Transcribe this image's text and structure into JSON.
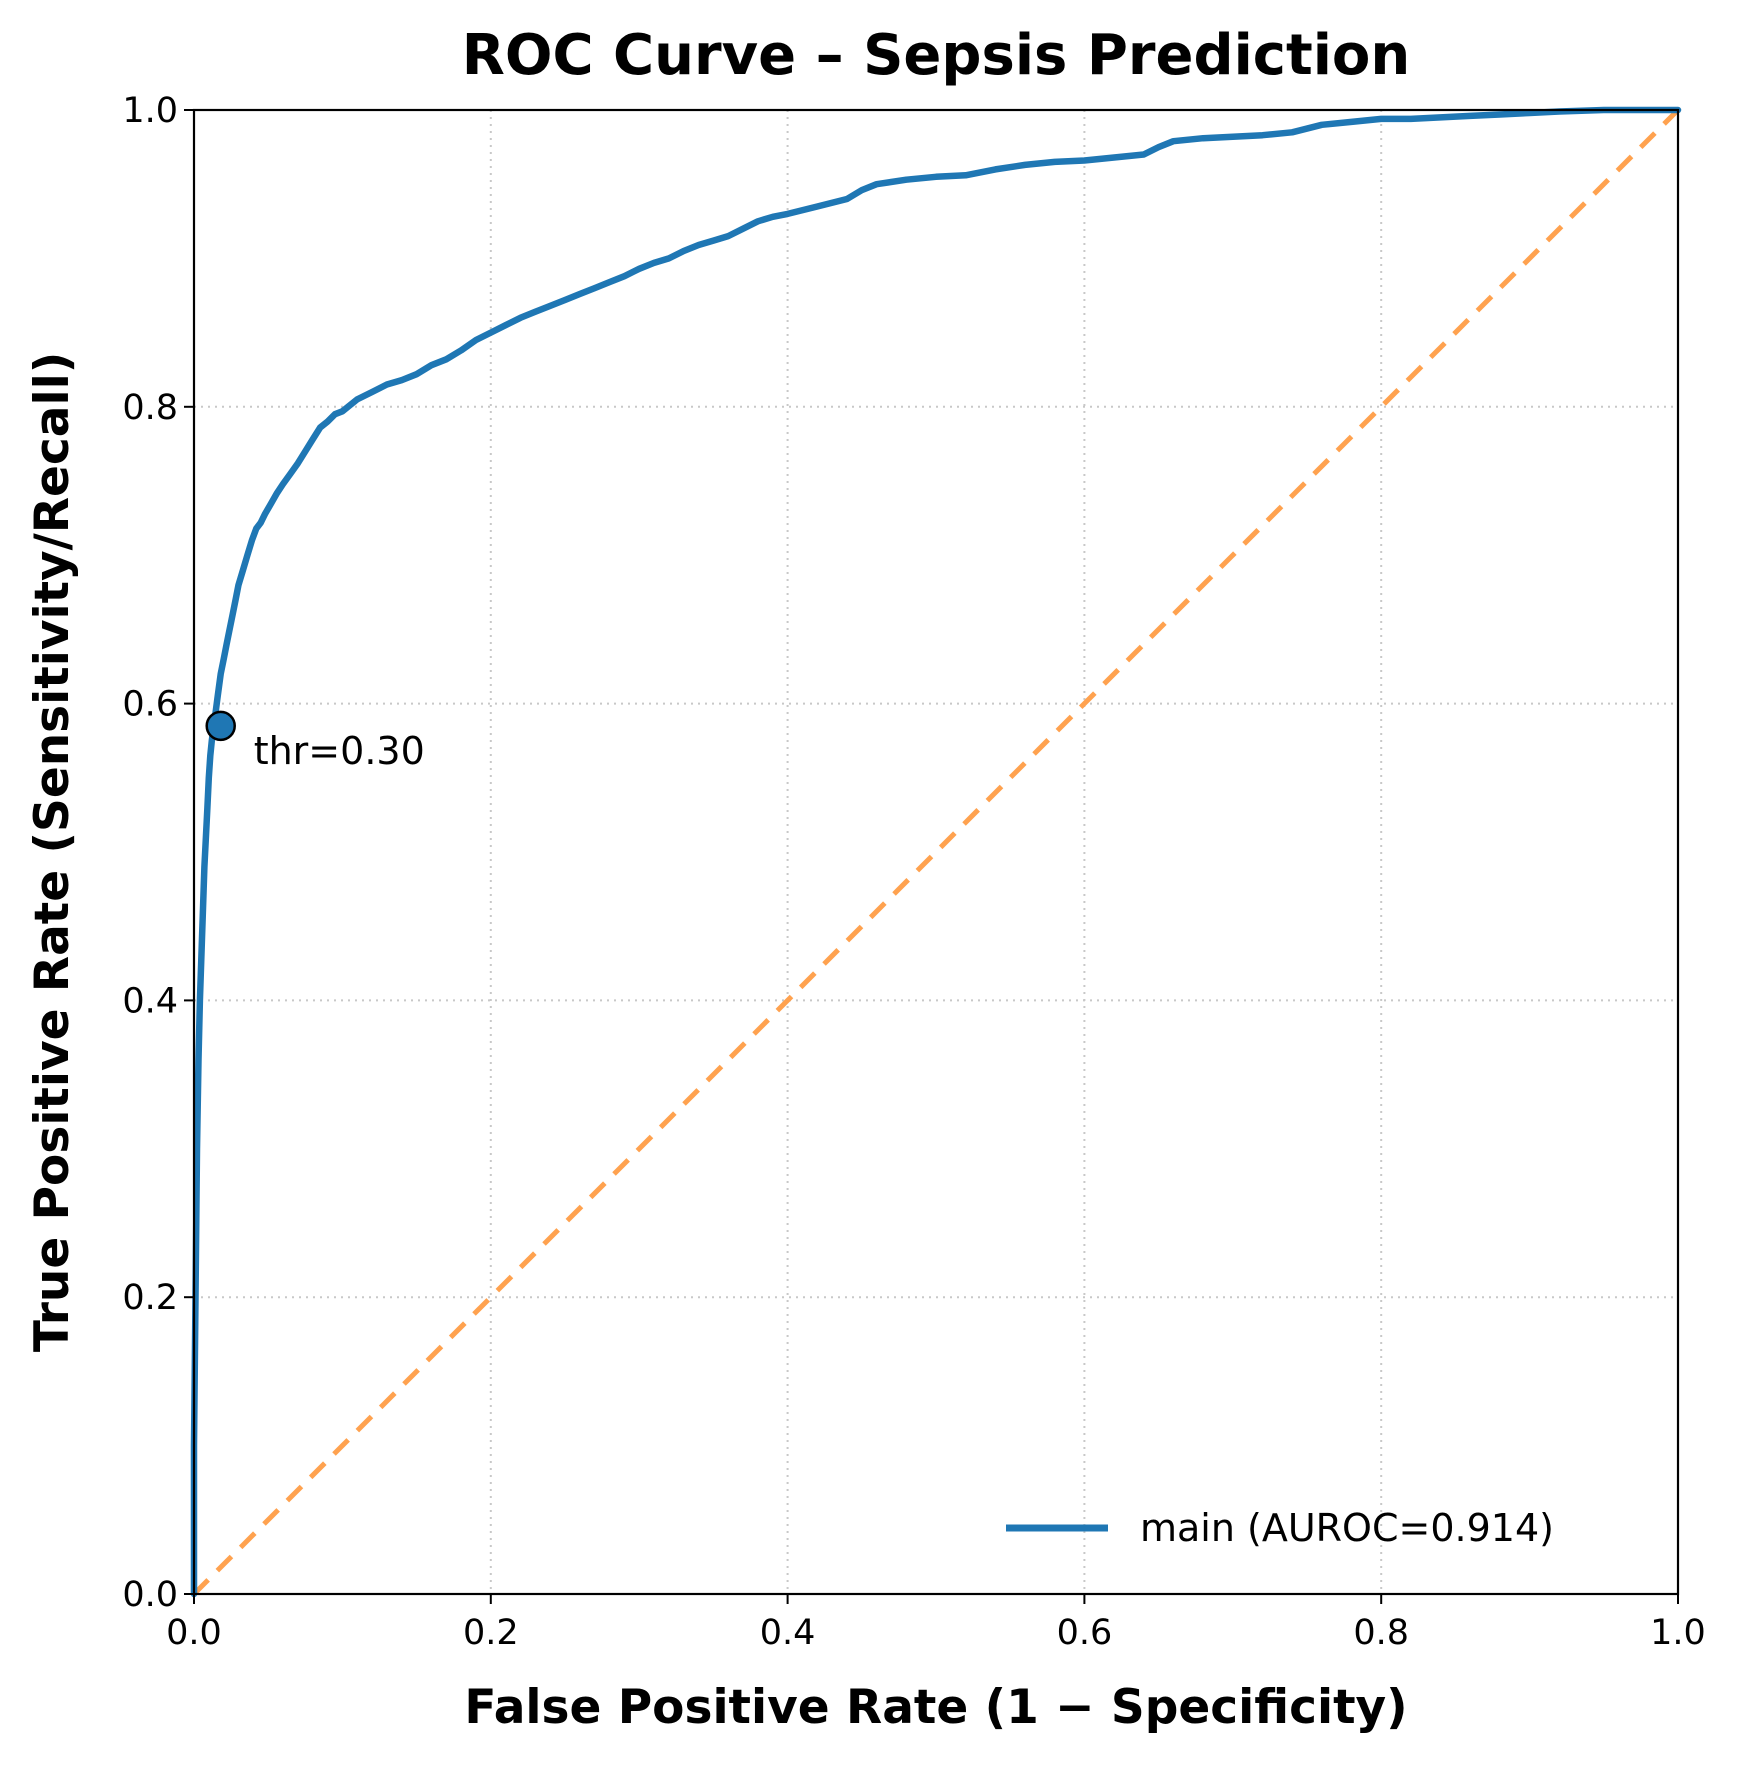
{
  "chart_data": {
    "type": "line",
    "title": "ROC Curve – Sepsis Prediction",
    "xlabel": "False Positive Rate (1 − Specificity)",
    "ylabel": "True Positive Rate (Sensitivity/Recall)",
    "xlim": [
      0.0,
      1.0
    ],
    "ylim": [
      0.0,
      1.0
    ],
    "xticks": [
      "0.0",
      "0.2",
      "0.4",
      "0.6",
      "0.8",
      "1.0"
    ],
    "yticks": [
      "0.0",
      "0.2",
      "0.4",
      "0.6",
      "0.8",
      "1.0"
    ],
    "grid": true,
    "legend_position": "lower-right",
    "series": [
      {
        "name": "main (AUROC=0.914)",
        "color": "#1f77b4",
        "x": [
          0.0,
          0.0,
          0.002,
          0.003,
          0.004,
          0.005,
          0.006,
          0.007,
          0.008,
          0.009,
          0.01,
          0.011,
          0.012,
          0.014,
          0.016,
          0.018,
          0.02,
          0.022,
          0.024,
          0.026,
          0.028,
          0.03,
          0.033,
          0.036,
          0.039,
          0.042,
          0.045,
          0.048,
          0.052,
          0.056,
          0.06,
          0.065,
          0.07,
          0.075,
          0.08,
          0.085,
          0.09,
          0.095,
          0.1,
          0.11,
          0.12,
          0.13,
          0.14,
          0.15,
          0.16,
          0.17,
          0.18,
          0.19,
          0.2,
          0.21,
          0.22,
          0.23,
          0.24,
          0.25,
          0.26,
          0.27,
          0.28,
          0.29,
          0.3,
          0.31,
          0.32,
          0.33,
          0.34,
          0.35,
          0.36,
          0.37,
          0.38,
          0.39,
          0.4,
          0.42,
          0.44,
          0.45,
          0.46,
          0.48,
          0.5,
          0.52,
          0.54,
          0.56,
          0.58,
          0.6,
          0.62,
          0.64,
          0.65,
          0.66,
          0.68,
          0.7,
          0.72,
          0.74,
          0.76,
          0.78,
          0.8,
          0.82,
          0.84,
          0.86,
          0.88,
          0.9,
          0.92,
          0.95,
          1.0
        ],
        "y": [
          0.0,
          0.1,
          0.3,
          0.36,
          0.4,
          0.43,
          0.46,
          0.49,
          0.51,
          0.53,
          0.55,
          0.565,
          0.575,
          0.59,
          0.605,
          0.62,
          0.63,
          0.64,
          0.65,
          0.66,
          0.67,
          0.68,
          0.69,
          0.7,
          0.71,
          0.718,
          0.722,
          0.728,
          0.735,
          0.742,
          0.748,
          0.755,
          0.762,
          0.77,
          0.778,
          0.786,
          0.79,
          0.795,
          0.797,
          0.805,
          0.81,
          0.815,
          0.818,
          0.822,
          0.828,
          0.832,
          0.838,
          0.845,
          0.85,
          0.855,
          0.86,
          0.864,
          0.868,
          0.872,
          0.876,
          0.88,
          0.884,
          0.888,
          0.893,
          0.897,
          0.9,
          0.905,
          0.909,
          0.912,
          0.915,
          0.92,
          0.925,
          0.928,
          0.93,
          0.935,
          0.94,
          0.946,
          0.95,
          0.953,
          0.955,
          0.956,
          0.96,
          0.963,
          0.965,
          0.966,
          0.968,
          0.97,
          0.975,
          0.979,
          0.981,
          0.982,
          0.983,
          0.985,
          0.99,
          0.992,
          0.994,
          0.994,
          0.995,
          0.996,
          0.997,
          0.998,
          0.999,
          1.0,
          1.0
        ]
      },
      {
        "name": "",
        "color": "#ffa24f",
        "dashed": true,
        "x": [
          0.0,
          1.0
        ],
        "y": [
          0.0,
          1.0
        ]
      }
    ],
    "annotations": [
      {
        "text": "thr=0.30",
        "x": 0.018,
        "y": 0.585,
        "marker": true,
        "marker_color": "#1f77b4"
      }
    ]
  }
}
